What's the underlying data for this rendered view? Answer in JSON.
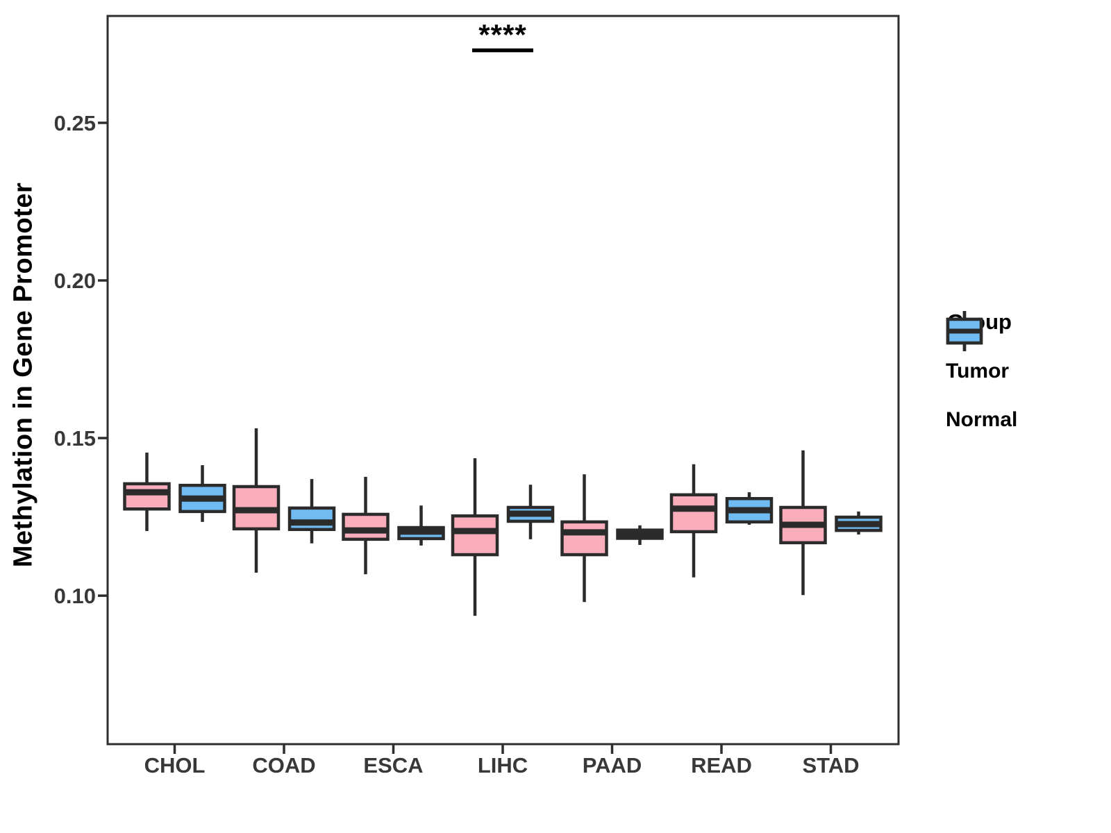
{
  "chart_data": {
    "type": "boxplot",
    "title": "",
    "xlabel": "",
    "ylabel": "Methylation in Gene Promoter",
    "categories": [
      "CHOL",
      "COAD",
      "ESCA",
      "LIHC",
      "PAAD",
      "READ",
      "STAD"
    ],
    "y_ticks": {
      "values": [
        0.1,
        0.15,
        0.2,
        0.25
      ],
      "labels": [
        "0.10",
        "0.15",
        "0.20",
        "0.25"
      ]
    },
    "ylim": [
      0.0529,
      0.2839
    ],
    "grid": false,
    "legend": {
      "title": "Group",
      "position": "right"
    },
    "series": [
      {
        "name": "Tumor",
        "fill": "#FAAEBC",
        "boxes": [
          {
            "low": 0.1205,
            "q1": 0.1275,
            "median": 0.1328,
            "q3": 0.1355,
            "high": 0.1454
          },
          {
            "low": 0.1073,
            "q1": 0.1212,
            "median": 0.1271,
            "q3": 0.1346,
            "high": 0.1531
          },
          {
            "low": 0.1068,
            "q1": 0.1179,
            "median": 0.1207,
            "q3": 0.1258,
            "high": 0.1377
          },
          {
            "low": 0.0936,
            "q1": 0.113,
            "median": 0.1205,
            "q3": 0.1253,
            "high": 0.1436
          },
          {
            "low": 0.098,
            "q1": 0.113,
            "median": 0.1201,
            "q3": 0.1234,
            "high": 0.1385
          },
          {
            "low": 0.1058,
            "q1": 0.1203,
            "median": 0.1276,
            "q3": 0.132,
            "high": 0.1417
          },
          {
            "low": 0.1002,
            "q1": 0.1168,
            "median": 0.1225,
            "q3": 0.128,
            "high": 0.1461
          }
        ]
      },
      {
        "name": "Normal",
        "fill": "#70BCF2",
        "boxes": [
          {
            "low": 0.1234,
            "q1": 0.1267,
            "median": 0.1308,
            "q3": 0.135,
            "high": 0.1414
          },
          {
            "low": 0.1166,
            "q1": 0.121,
            "median": 0.1232,
            "q3": 0.1278,
            "high": 0.137
          },
          {
            "low": 0.1159,
            "q1": 0.1181,
            "median": 0.1203,
            "q3": 0.1216,
            "high": 0.1286
          },
          {
            "low": 0.1179,
            "q1": 0.1236,
            "median": 0.126,
            "q3": 0.128,
            "high": 0.1352
          },
          {
            "low": 0.1161,
            "q1": 0.1182,
            "median": 0.1195,
            "q3": 0.1208,
            "high": 0.1223
          },
          {
            "low": 0.1225,
            "q1": 0.1234,
            "median": 0.1271,
            "q3": 0.1308,
            "high": 0.1328
          },
          {
            "low": 0.1194,
            "q1": 0.1207,
            "median": 0.1227,
            "q3": 0.1249,
            "high": 0.1267
          }
        ]
      }
    ],
    "annotation": {
      "text": "****",
      "category": "LIHC",
      "y": 0.273
    },
    "colors": {
      "tumor_fill": "#FAAEBC",
      "normal_fill": "#70BCF2",
      "box_outline": "#2B2B2B",
      "panel_border": "#2E2E2E",
      "axis_text": "#383838",
      "annotation_text": "#000000",
      "background": "#FFFFFF"
    }
  }
}
